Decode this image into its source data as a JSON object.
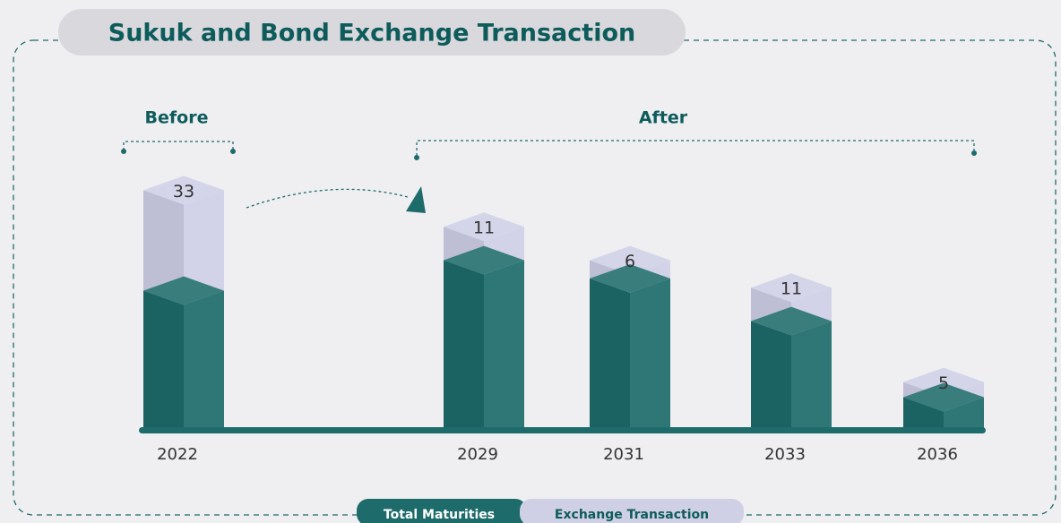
{
  "chart_data": {
    "type": "bar3d-stacked",
    "title": "Sukuk and Bond Exchange Transaction",
    "groups": [
      "Before",
      "After"
    ],
    "categories": [
      "2022",
      "2029",
      "2031",
      "2033",
      "2036"
    ],
    "series": [
      {
        "name": "Total Maturities",
        "color": "#1e6b6b",
        "values": [
          41,
          51,
          45,
          31,
          6
        ]
      },
      {
        "name": "Exchange Transaction",
        "color": "#cfd0e6",
        "values": [
          33,
          11,
          6,
          11,
          5
        ]
      }
    ]
  }
}
